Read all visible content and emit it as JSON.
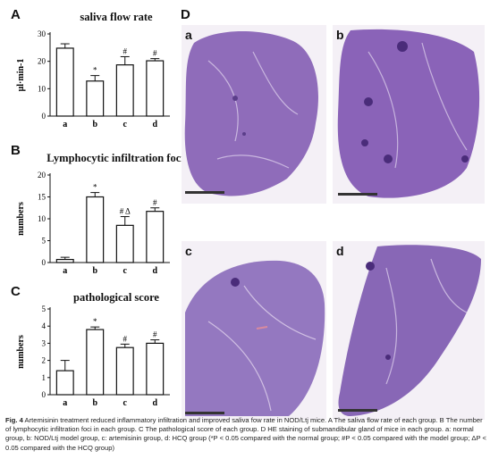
{
  "panel_letters": {
    "a": "A",
    "b": "B",
    "c": "C",
    "d": "D"
  },
  "chart_data": [
    {
      "type": "bar",
      "title": "saliva flow rate",
      "ylabel": "μl·min-1",
      "categories": [
        "a",
        "b",
        "c",
        "d"
      ],
      "values": [
        24.8,
        12.8,
        18.7,
        20.2
      ],
      "errors": [
        1.6,
        2.0,
        3.0,
        0.8
      ],
      "annotations": [
        "",
        "*",
        "#",
        "#"
      ],
      "ylim": [
        0,
        30
      ],
      "yticks": [
        0,
        10,
        20,
        30
      ]
    },
    {
      "type": "bar",
      "title": "Lymphocytic infiltration foci",
      "ylabel": "numbers",
      "categories": [
        "a",
        "b",
        "c",
        "d"
      ],
      "values": [
        0.7,
        15.0,
        8.5,
        11.7
      ],
      "errors": [
        0.5,
        1.0,
        2.0,
        0.8
      ],
      "annotations": [
        "",
        "*",
        "# Δ",
        "#"
      ],
      "ylim": [
        0,
        20
      ],
      "yticks": [
        0,
        5,
        10,
        15,
        20
      ]
    },
    {
      "type": "bar",
      "title": "pathological score",
      "ylabel": "numbers",
      "categories": [
        "a",
        "b",
        "c",
        "d"
      ],
      "values": [
        1.4,
        3.8,
        2.75,
        3.0
      ],
      "errors": [
        0.6,
        0.15,
        0.2,
        0.2
      ],
      "annotations": [
        "",
        "*",
        "#",
        "#"
      ],
      "ylim": [
        0,
        5
      ],
      "yticks": [
        0,
        1,
        2,
        3,
        4,
        5
      ]
    }
  ],
  "histology": {
    "panels": [
      {
        "label": "a",
        "tissue_color": "#8f6cba"
      },
      {
        "label": "b",
        "tissue_color": "#8a63b8"
      },
      {
        "label": "c",
        "tissue_color": "#9478c0"
      },
      {
        "label": "d",
        "tissue_color": "#8867b6"
      }
    ],
    "background_color": "#f4f0f6"
  },
  "caption": {
    "fig_number": "Fig. 4",
    "text": " Artemisinin treatment reduced inflammatory infiltration and improved saliva fow rate in NOD/Ltj mice. A The saliva flow rate of each group. B The number of lymphocytic infiltration foci in each group. C The pathological score of each group. D HE staining of submandibular gland of mice in each group. a: normal group, b: NOD/Ltj model group, c: artemisinin group, d: HCQ group (*P < 0.05 compared with the normal group; #P < 0.05 compared with the model group; ΔP < 0.05 compared with the HCQ group)"
  }
}
